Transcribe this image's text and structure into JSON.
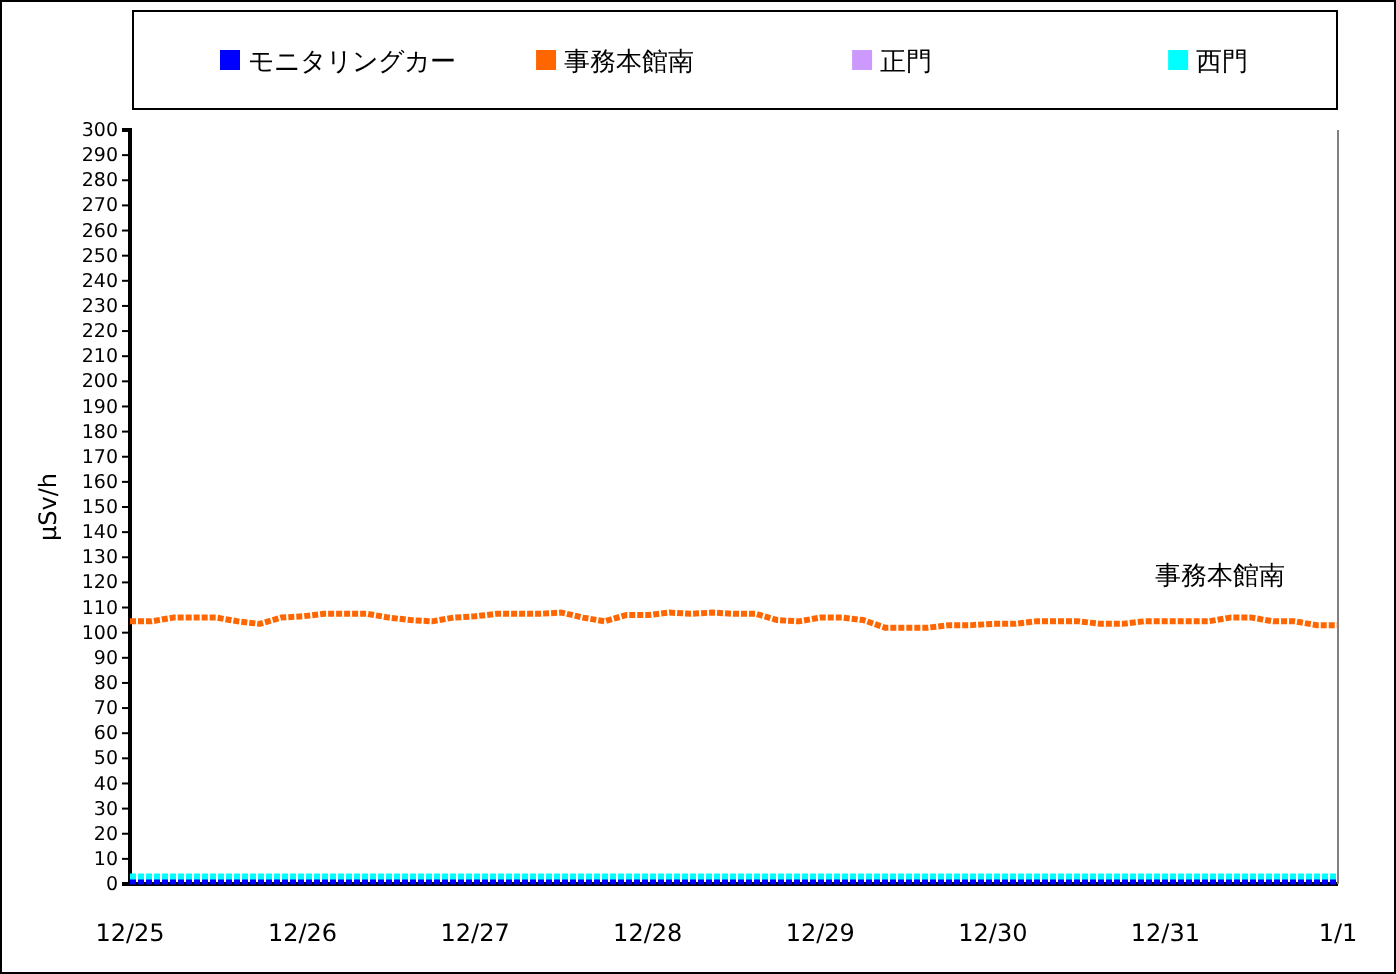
{
  "chart_data": {
    "type": "line",
    "ylabel": "μSv/h",
    "legend": "top",
    "line_style": "dotted",
    "categories": [
      "12/25",
      null,
      null,
      null,
      null,
      null,
      null,
      null,
      "12/26",
      null,
      null,
      null,
      null,
      null,
      null,
      null,
      "12/27",
      null,
      null,
      null,
      null,
      null,
      null,
      null,
      "12/28",
      null,
      null,
      null,
      null,
      null,
      null,
      null,
      "12/29",
      null,
      null,
      null,
      null,
      null,
      null,
      null,
      "12/30",
      null,
      null,
      null,
      null,
      null,
      null,
      null,
      "12/31",
      null,
      null,
      null,
      null,
      null,
      null,
      null,
      "1/1"
    ],
    "ylim": [
      0,
      300
    ],
    "yticks": [
      0,
      10,
      20,
      30,
      40,
      50,
      60,
      70,
      80,
      90,
      100,
      110,
      120,
      130,
      140,
      150,
      160,
      170,
      180,
      190,
      200,
      210,
      220,
      230,
      240,
      250,
      260,
      270,
      280,
      290,
      300
    ],
    "annotations": [
      "事務本館南"
    ],
    "series": [
      {
        "name": "モニタリングカー",
        "color": "#0000ff",
        "values": [
          1,
          1,
          1,
          1,
          1,
          1,
          1,
          1,
          1,
          1,
          1,
          1,
          1,
          1,
          1,
          1,
          1,
          1,
          1,
          1,
          1,
          1,
          1,
          1,
          1,
          1,
          1,
          1,
          1,
          1,
          1,
          1,
          1,
          1,
          1,
          1,
          1,
          1,
          1,
          1,
          1,
          1,
          1,
          1,
          1,
          1,
          1,
          1,
          1,
          1,
          1,
          1,
          1,
          1,
          1,
          1,
          1
        ]
      },
      {
        "name": "事務本館南",
        "color": "#ff6600",
        "values": [
          104.5,
          104.5,
          106,
          106,
          106,
          104.5,
          103.5,
          106,
          106.5,
          107.5,
          107.5,
          107.5,
          106,
          105,
          104.5,
          106,
          106.5,
          107.5,
          107.5,
          107.5,
          108,
          106,
          104.5,
          107,
          107,
          108,
          107.5,
          108,
          107.5,
          107.5,
          105,
          104.5,
          106,
          106,
          105,
          102,
          102,
          102,
          103,
          103,
          103.5,
          103.5,
          104.5,
          104.5,
          104.5,
          103.5,
          103.5,
          104.5,
          104.5,
          104.5,
          104.5,
          106,
          106,
          104.5,
          104.5,
          103,
          103
        ]
      },
      {
        "name": "正門",
        "color": "#cc99ff",
        "values": [
          null,
          null,
          null,
          null,
          null,
          null,
          null,
          null,
          null,
          null,
          null,
          null,
          null,
          null,
          null,
          null,
          null,
          null,
          null,
          null,
          null,
          null,
          null,
          null,
          null,
          null,
          null,
          null,
          null,
          null,
          null,
          null,
          null,
          null,
          null,
          null,
          null,
          null,
          null,
          null,
          null,
          null,
          null,
          null,
          null,
          null,
          null,
          null,
          null,
          null,
          null,
          null,
          null,
          null,
          null,
          null,
          null
        ]
      },
      {
        "name": "西門",
        "color": "#00ffff",
        "values": [
          3,
          3,
          3,
          3,
          3,
          3,
          3,
          3,
          3,
          3,
          3,
          3,
          3,
          3,
          3,
          3,
          3,
          3,
          3,
          3,
          3,
          3,
          3,
          3,
          3,
          3,
          3,
          3,
          3,
          3,
          3,
          3,
          3,
          3,
          3,
          3,
          3,
          3,
          3,
          3,
          3,
          3,
          3,
          3,
          3,
          3,
          3,
          3,
          3,
          3,
          3,
          3,
          3,
          3,
          3,
          3,
          3
        ]
      }
    ]
  }
}
